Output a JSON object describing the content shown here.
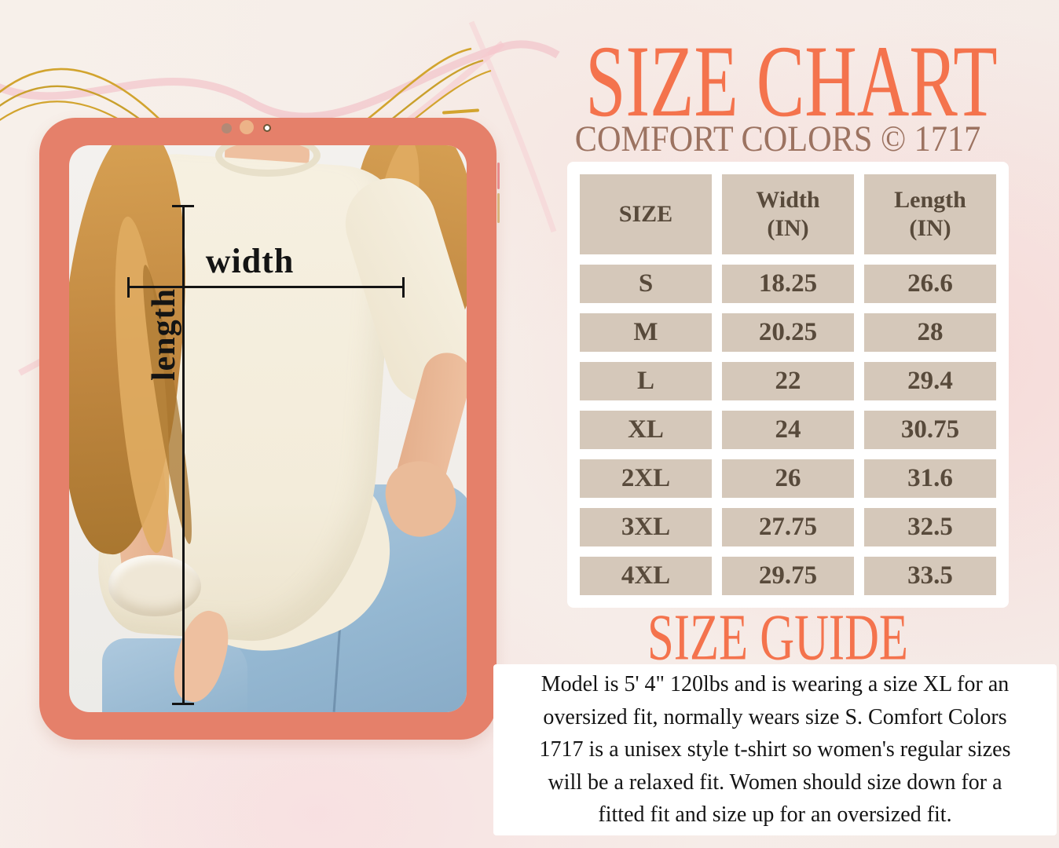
{
  "page": {
    "title": "SIZE CHART",
    "subtitle": "COMFORT COLORS © 1717"
  },
  "size_table": {
    "headers": [
      {
        "label": "SIZE",
        "unit": ""
      },
      {
        "label": "Width",
        "unit": "(IN)"
      },
      {
        "label": "Length",
        "unit": "(IN)"
      }
    ],
    "rows": [
      {
        "size": "S",
        "width": "18.25",
        "length": "26.6"
      },
      {
        "size": "M",
        "width": "20.25",
        "length": "28"
      },
      {
        "size": "L",
        "width": "22",
        "length": "29.4"
      },
      {
        "size": "XL",
        "width": "24",
        "length": "30.75"
      },
      {
        "size": "2XL",
        "width": "26",
        "length": "31.6"
      },
      {
        "size": "3XL",
        "width": "27.75",
        "length": "32.5"
      },
      {
        "size": "4XL",
        "width": "29.75",
        "length": "33.5"
      }
    ]
  },
  "size_guide": {
    "heading": "SIZE GUIDE",
    "body_lines": [
      "Model is 5' 4\" 120lbs and is wearing a size XL for an",
      "oversized fit, normally wears size S.  Comfort Colors",
      "1717 is a unisex style t-shirt so women's regular sizes",
      "will be a relaxed fit. Women should size down for a",
      "fitted fit and size up for an oversized fit."
    ]
  },
  "photo_annotations": {
    "width_label": "width",
    "length_label": "length"
  },
  "colors": {
    "accent_coral": "#f4734d",
    "frame_coral": "#e5806a",
    "subtitle_brown": "#9c7361",
    "table_cell_bg": "#d5c8ba",
    "table_cell_text": "#584a3b",
    "gold_line": "#d2a42e",
    "pink_line": "#f2bdc5",
    "shirt_cream": "#f3ecda",
    "jeans_blue": "#95b8d2"
  }
}
